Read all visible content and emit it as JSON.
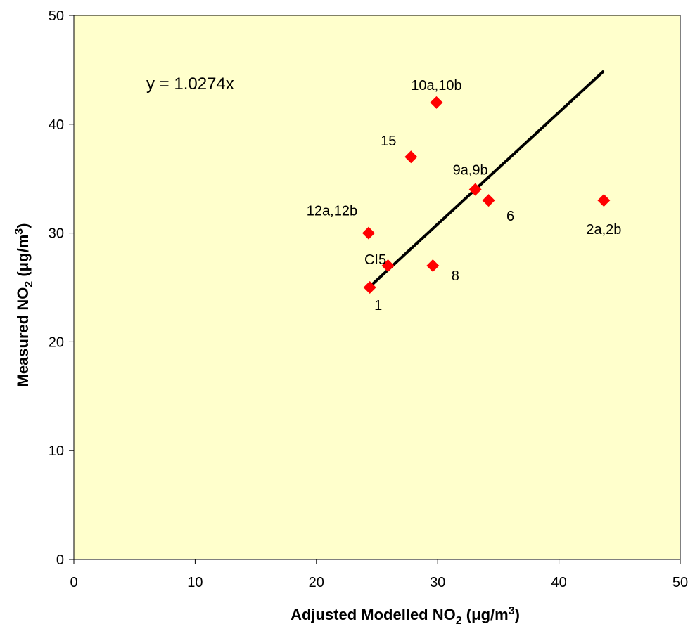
{
  "chart_data": {
    "type": "scatter",
    "title": "",
    "xlabel": {
      "main": "Adjusted Modelled NO",
      "subscript": "2",
      "unit_open": " (",
      "mu": "μ",
      "unit_mid": "g/m",
      "superscript": "3",
      "unit_close": ")"
    },
    "ylabel": {
      "main": "Measured NO",
      "subscript": "2",
      "unit_open": " (",
      "mu": "μ",
      "unit_mid": "g/m",
      "superscript": "3",
      "unit_close": ")"
    },
    "xlim": [
      0,
      50
    ],
    "ylim": [
      0,
      50
    ],
    "xticks": [
      "0",
      "10",
      "20",
      "30",
      "40",
      "50"
    ],
    "yticks": [
      "0",
      "10",
      "20",
      "30",
      "40",
      "50"
    ],
    "grid": false,
    "points": [
      {
        "label": "1",
        "x": 24.4,
        "y": 25
      },
      {
        "label": "CI5",
        "x": 25.9,
        "y": 27
      },
      {
        "label": "12a,12b",
        "x": 24.3,
        "y": 30
      },
      {
        "label": "8",
        "x": 29.6,
        "y": 27
      },
      {
        "label": "15",
        "x": 27.8,
        "y": 37
      },
      {
        "label": "10a,10b",
        "x": 29.9,
        "y": 42
      },
      {
        "label": "9a,9b",
        "x": 33.1,
        "y": 34
      },
      {
        "label": "6",
        "x": 34.2,
        "y": 33
      },
      {
        "label": "2a,2b",
        "x": 43.7,
        "y": 33
      }
    ],
    "trendline": {
      "equation": "y = 1.0274x",
      "slope": 1.0274,
      "x_start": 24.3,
      "x_end": 43.7
    },
    "colors": {
      "plot_background": "#FFFFCC",
      "marker": "#FF0000",
      "trendline": "#000000"
    }
  }
}
